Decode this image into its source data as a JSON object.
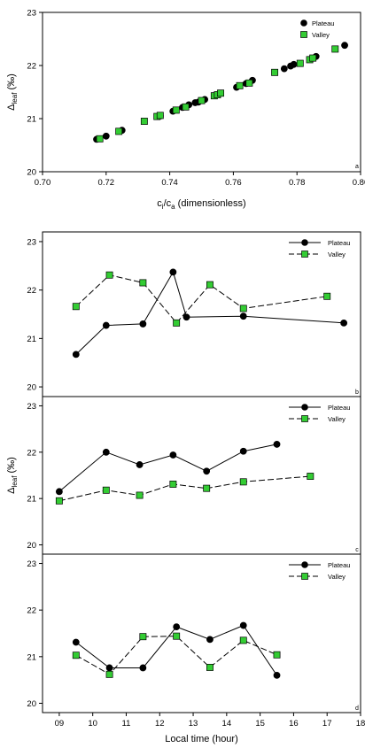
{
  "chart_data": [
    {
      "type": "scatter",
      "panel_label": "a",
      "title": "",
      "xlabel": {
        "main": "c",
        "sub1": "i",
        "mid": "/c",
        "sub2": "a",
        "rest": " (dimensionless)"
      },
      "ylabel": {
        "main": "Δ",
        "sub": "leaf",
        "rest": " (‰)"
      },
      "xlim": [
        0.7,
        0.8
      ],
      "ylim": [
        20,
        23
      ],
      "x_ticks": [
        0.7,
        0.72,
        0.74,
        0.76,
        0.78,
        0.8
      ],
      "x_tick_labels": [
        "0.70",
        "0.72",
        "0.74",
        "0.76",
        "0.78",
        "0.80"
      ],
      "y_ticks": [
        20,
        21,
        22,
        23
      ],
      "y_tick_labels": [
        "20",
        "21",
        "22",
        "23"
      ],
      "legend_position": "top-right",
      "grid": false,
      "series": [
        {
          "name": "Plateau",
          "marker": "circle",
          "color": "#000000",
          "points": [
            [
              0.717,
              20.61
            ],
            [
              0.72,
              20.67
            ],
            [
              0.725,
              20.78
            ],
            [
              0.737,
              21.05
            ],
            [
              0.741,
              21.14
            ],
            [
              0.744,
              21.21
            ],
            [
              0.746,
              21.26
            ],
            [
              0.748,
              21.3
            ],
            [
              0.749,
              21.31
            ],
            [
              0.751,
              21.36
            ],
            [
              0.761,
              21.59
            ],
            [
              0.764,
              21.66
            ],
            [
              0.766,
              21.72
            ],
            [
              0.776,
              21.94
            ],
            [
              0.778,
              21.99
            ],
            [
              0.779,
              22.02
            ],
            [
              0.786,
              22.17
            ],
            [
              0.795,
              22.38
            ]
          ]
        },
        {
          "name": "Valley",
          "marker": "square",
          "color": "#33cc33",
          "points": [
            [
              0.718,
              20.62
            ],
            [
              0.724,
              20.76
            ],
            [
              0.732,
              20.95
            ],
            [
              0.736,
              21.04
            ],
            [
              0.737,
              21.06
            ],
            [
              0.742,
              21.16
            ],
            [
              0.745,
              21.22
            ],
            [
              0.75,
              21.34
            ],
            [
              0.754,
              21.43
            ],
            [
              0.755,
              21.45
            ],
            [
              0.756,
              21.48
            ],
            [
              0.762,
              21.62
            ],
            [
              0.765,
              21.67
            ],
            [
              0.773,
              21.87
            ],
            [
              0.781,
              22.04
            ],
            [
              0.784,
              22.11
            ],
            [
              0.785,
              22.14
            ],
            [
              0.792,
              22.31
            ]
          ]
        }
      ]
    },
    {
      "type": "line",
      "panel_label": "b",
      "xlim": [
        8.5,
        18
      ],
      "ylim": [
        19.8,
        23.2
      ],
      "y_ticks": [
        20,
        21,
        22,
        23
      ],
      "y_tick_labels": [
        "20",
        "21",
        "22",
        "23"
      ],
      "legend_position": "top-right",
      "series": [
        {
          "name": "Plateau",
          "marker": "circle",
          "color": "#000000",
          "dash": "solid",
          "x": [
            9.5,
            10.4,
            11.5,
            12.4,
            12.8,
            14.5,
            17.5
          ],
          "y": [
            20.67,
            21.27,
            21.3,
            22.37,
            21.44,
            21.46,
            21.32
          ]
        },
        {
          "name": "Valley",
          "marker": "square",
          "color": "#33cc33",
          "dash": "dashed",
          "x": [
            9.5,
            10.5,
            11.5,
            12.5,
            13.5,
            14.5,
            17.0
          ],
          "y": [
            21.66,
            22.31,
            22.15,
            21.32,
            22.11,
            21.62,
            21.87
          ]
        }
      ]
    },
    {
      "type": "line",
      "panel_label": "c",
      "xlim": [
        8.5,
        18
      ],
      "ylim": [
        19.8,
        23.2
      ],
      "ylabel": {
        "main": "Δ",
        "sub": "leaf",
        "rest": " (‰)"
      },
      "y_ticks": [
        20,
        21,
        22,
        23
      ],
      "y_tick_labels": [
        "20",
        "21",
        "22",
        "23"
      ],
      "legend_position": "top-right",
      "series": [
        {
          "name": "Plateau",
          "marker": "circle",
          "color": "#000000",
          "dash": "solid",
          "x": [
            9.0,
            10.4,
            11.4,
            12.4,
            13.4,
            14.5,
            15.5
          ],
          "y": [
            21.15,
            22.0,
            21.73,
            21.94,
            21.59,
            22.02,
            22.17
          ]
        },
        {
          "name": "Valley",
          "marker": "square",
          "color": "#33cc33",
          "dash": "dashed",
          "x": [
            9.0,
            10.4,
            11.4,
            12.4,
            13.4,
            14.5,
            16.5
          ],
          "y": [
            20.95,
            21.18,
            21.07,
            21.31,
            21.22,
            21.36,
            21.48
          ]
        }
      ]
    },
    {
      "type": "line",
      "panel_label": "d",
      "xlim": [
        8.5,
        18
      ],
      "ylim": [
        19.8,
        23.2
      ],
      "xlabel": "Local time (hour)",
      "x_ticks": [
        9,
        10,
        11,
        12,
        13,
        14,
        15,
        16,
        17,
        18
      ],
      "x_tick_labels": [
        "09",
        "10",
        "11",
        "12",
        "13",
        "14",
        "15",
        "16",
        "17",
        "18"
      ],
      "y_ticks": [
        20,
        21,
        22,
        23
      ],
      "y_tick_labels": [
        "20",
        "21",
        "22",
        "23"
      ],
      "legend_position": "top-right",
      "series": [
        {
          "name": "Plateau",
          "marker": "circle",
          "color": "#000000",
          "dash": "solid",
          "x": [
            9.5,
            10.5,
            11.5,
            12.5,
            13.5,
            14.5,
            15.5
          ],
          "y": [
            21.31,
            20.76,
            20.76,
            21.64,
            21.37,
            21.67,
            20.6
          ]
        },
        {
          "name": "Valley",
          "marker": "square",
          "color": "#33cc33",
          "dash": "dashed",
          "x": [
            9.5,
            10.5,
            11.5,
            12.5,
            13.5,
            14.5,
            15.5
          ],
          "y": [
            21.03,
            20.62,
            21.43,
            21.44,
            20.77,
            21.35,
            21.04
          ]
        }
      ]
    }
  ]
}
